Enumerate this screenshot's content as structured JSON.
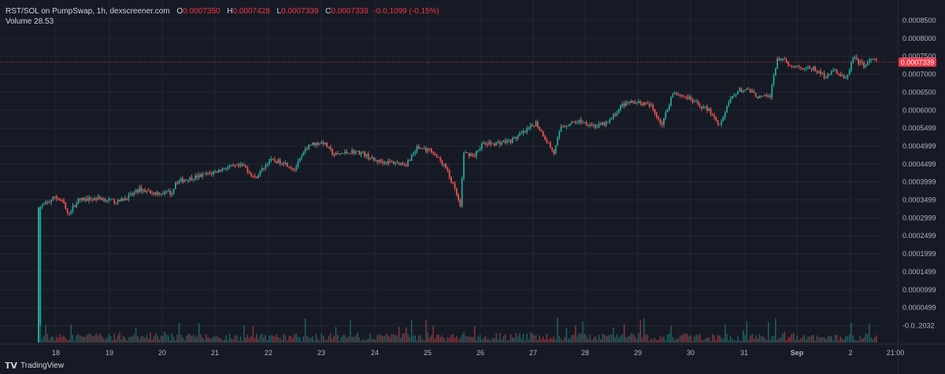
{
  "legend": {
    "symbol": "RST/SOL on PumpSwap, 1h, dexscreener.com",
    "o_label": "O",
    "o_value": "0.0007350",
    "h_label": "H",
    "h_value": "0.0007428",
    "l_label": "L",
    "l_value": "0.0007339",
    "c_label": "C",
    "c_value": "0.0007339",
    "change": "-0.0,1099 (-0.15%)",
    "volume_label": "Volume",
    "volume_value": "28.53"
  },
  "logo_text": "TradingView",
  "colors": {
    "background": "#161a25",
    "grid": "#232734",
    "up": "#26a69a",
    "down": "#ef5350",
    "price_line": "#f23645",
    "axis_text": "#b2b5be"
  },
  "chart_data": {
    "type": "candlestick",
    "xlabel": "",
    "ylabel": "",
    "x_ticks": [
      "18",
      "19",
      "20",
      "21",
      "22",
      "23",
      "24",
      "25",
      "26",
      "27",
      "28",
      "29",
      "30",
      "31",
      "Sep",
      "2",
      "21:00"
    ],
    "y_ticks": [
      "0.0008500",
      "0.0008000",
      "0.0007500",
      "0.0007000",
      "0.0006500",
      "0.0006000",
      "0.0005499",
      "0.0004999",
      "0.0004499",
      "0.0003999",
      "0.0003499",
      "0.0002999",
      "0.0002499",
      "0.0001999",
      "0.0001499",
      "0.0000999",
      "0.0000499",
      "-0.0..2032"
    ],
    "ylim": [
      0,
      0.00085
    ],
    "current_price_label": "0.0007339",
    "current_price": 0.0007339,
    "price_path": [
      [
        0,
        1e-05
      ],
      [
        1,
        0.00033
      ],
      [
        6,
        0.000345
      ],
      [
        9,
        0.00036
      ],
      [
        14,
        0.00034
      ],
      [
        16,
        0.00031
      ],
      [
        22,
        0.00035
      ],
      [
        34,
        0.000355
      ],
      [
        44,
        0.000345
      ],
      [
        52,
        0.000365
      ],
      [
        56,
        0.00038
      ],
      [
        64,
        0.00037
      ],
      [
        74,
        0.00037
      ],
      [
        76,
        0.0004
      ],
      [
        84,
        0.00041
      ],
      [
        96,
        0.000425
      ],
      [
        104,
        0.00044
      ],
      [
        114,
        0.000445
      ],
      [
        120,
        0.00041
      ],
      [
        128,
        0.00046
      ],
      [
        136,
        0.000455
      ],
      [
        142,
        0.000435
      ],
      [
        150,
        0.000505
      ],
      [
        158,
        0.00051
      ],
      [
        164,
        0.000475
      ],
      [
        174,
        0.000485
      ],
      [
        180,
        0.00048
      ],
      [
        186,
        0.00046
      ],
      [
        194,
        0.000455
      ],
      [
        204,
        0.00045
      ],
      [
        210,
        0.000495
      ],
      [
        218,
        0.000488
      ],
      [
        226,
        0.00044
      ],
      [
        232,
        0.000365
      ],
      [
        234,
        0.00033
      ],
      [
        236,
        0.00048
      ],
      [
        242,
        0.000475
      ],
      [
        246,
        0.000505
      ],
      [
        254,
        0.000508
      ],
      [
        262,
        0.000515
      ],
      [
        270,
        0.00054
      ],
      [
        276,
        0.000565
      ],
      [
        282,
        0.000515
      ],
      [
        286,
        0.00048
      ],
      [
        290,
        0.000555
      ],
      [
        300,
        0.00057
      ],
      [
        310,
        0.000555
      ],
      [
        316,
        0.000565
      ],
      [
        324,
        0.000615
      ],
      [
        332,
        0.000625
      ],
      [
        340,
        0.00061
      ],
      [
        346,
        0.00056
      ],
      [
        352,
        0.00065
      ],
      [
        360,
        0.000635
      ],
      [
        366,
        0.000615
      ],
      [
        372,
        0.0006
      ],
      [
        378,
        0.00056
      ],
      [
        384,
        0.00063
      ],
      [
        388,
        0.000655
      ],
      [
        394,
        0.000655
      ],
      [
        400,
        0.000635
      ],
      [
        406,
        0.00064
      ],
      [
        410,
        0.000745
      ],
      [
        416,
        0.00073
      ],
      [
        422,
        0.00072
      ],
      [
        430,
        0.000715
      ],
      [
        436,
        0.000695
      ],
      [
        442,
        0.00071
      ],
      [
        448,
        0.000685
      ],
      [
        452,
        0.000745
      ],
      [
        458,
        0.000725
      ],
      [
        463,
        0.000742
      ],
      [
        466,
        0.0007339
      ]
    ],
    "volume_scale": [
      0,
      1
    ],
    "volume_profile": "hourly volume bars scaled relative to first bar",
    "num_candles": 466
  }
}
